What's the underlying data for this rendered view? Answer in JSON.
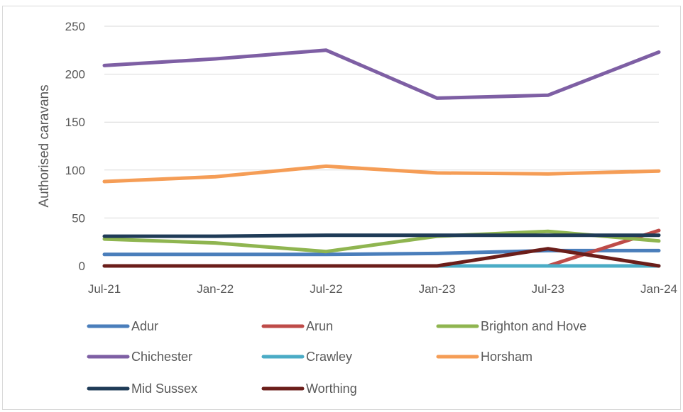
{
  "chart_data": {
    "type": "line",
    "title": "",
    "xlabel": "",
    "ylabel": "Authorised caravans",
    "categories": [
      "Jul-21",
      "Jan-22",
      "Jul-22",
      "Jan-23",
      "Jul-23",
      "Jan-24"
    ],
    "ylim": [
      0,
      250
    ],
    "yticks": [
      0,
      50,
      100,
      150,
      200,
      250
    ],
    "grid": true,
    "legend_position": "bottom",
    "series": [
      {
        "name": "Adur",
        "color": "#4a7ebb",
        "values": [
          12,
          12,
          12,
          13,
          16,
          16
        ]
      },
      {
        "name": "Arun",
        "color": "#be4b48",
        "values": [
          0,
          0,
          0,
          0,
          0,
          37
        ]
      },
      {
        "name": "Brighton and Hove",
        "color": "#8fb550",
        "values": [
          28,
          24,
          15,
          31,
          36,
          26
        ]
      },
      {
        "name": "Chichester",
        "color": "#7e5fa4",
        "values": [
          209,
          216,
          225,
          175,
          178,
          223
        ]
      },
      {
        "name": "Crawley",
        "color": "#4bacc6",
        "values": [
          0,
          0,
          0,
          0,
          0,
          0
        ]
      },
      {
        "name": "Horsham",
        "color": "#f59d56",
        "values": [
          88,
          93,
          104,
          97,
          96,
          99
        ]
      },
      {
        "name": "Mid Sussex",
        "color": "#1f3b57",
        "values": [
          31,
          31,
          32,
          32,
          32,
          32
        ]
      },
      {
        "name": "Worthing",
        "color": "#6b1e1a",
        "values": [
          0,
          0,
          0,
          0,
          18,
          0
        ]
      }
    ]
  }
}
